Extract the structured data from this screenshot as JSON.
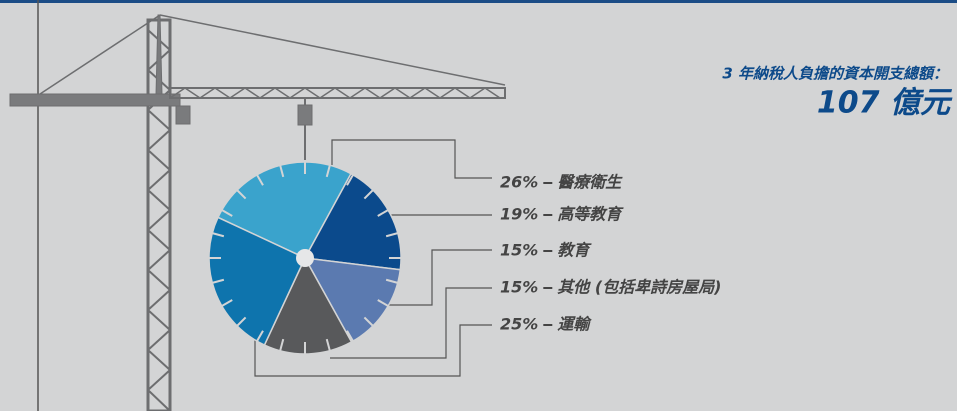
{
  "chart_data": {
    "type": "pie",
    "title": "3 年納稅人負擔的資本開支總額：",
    "subtitle": "107 億元",
    "categories": [
      "醫療衛生",
      "高等教育",
      "教育",
      "其他 (包括卑詩房屋局)",
      "運輸"
    ],
    "values": [
      26,
      19,
      15,
      15,
      25
    ],
    "value_labels": [
      "26%",
      "19%",
      "15%",
      "15%",
      "25%"
    ],
    "colors": [
      "#3aa3cc",
      "#0b4a8c",
      "#5b7ab0",
      "#58595b",
      "#0e74ad"
    ]
  }
}
